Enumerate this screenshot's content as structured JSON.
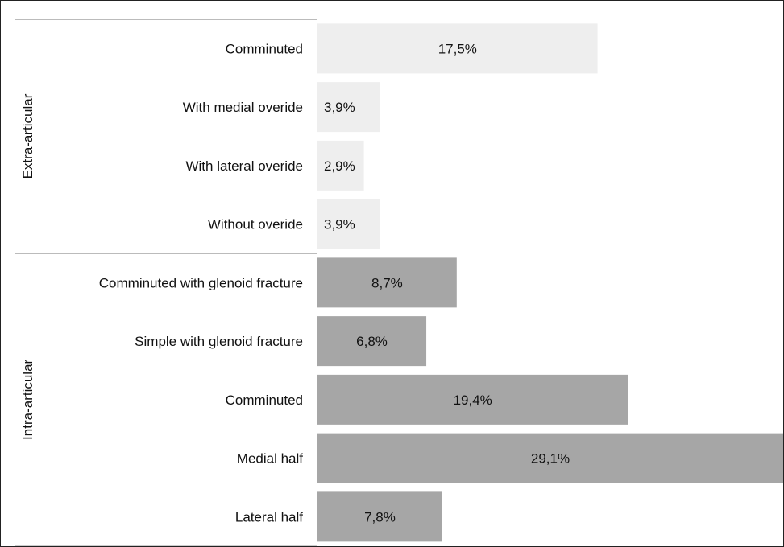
{
  "chart_data": {
    "type": "bar",
    "orientation": "horizontal",
    "groups": [
      {
        "name": "Extra-articular",
        "color": "#eeeeee",
        "items": [
          {
            "label": "Comminuted",
            "value": 17.5,
            "display": "17,5%"
          },
          {
            "label": "With medial overide",
            "value": 3.9,
            "display": "3,9%"
          },
          {
            "label": "With lateral overide",
            "value": 2.9,
            "display": "2,9%"
          },
          {
            "label": "Without overide",
            "value": 3.9,
            "display": "3,9%"
          }
        ]
      },
      {
        "name": "Intra-articular",
        "color": "#a6a6a6",
        "items": [
          {
            "label": "Comminuted with glenoid fracture",
            "value": 8.7,
            "display": "8,7%"
          },
          {
            "label": "Simple with glenoid fracture",
            "value": 6.8,
            "display": "6,8%"
          },
          {
            "label": "Comminuted",
            "value": 19.4,
            "display": "19,4%"
          },
          {
            "label": "Medial half",
            "value": 29.1,
            "display": "29,1%"
          },
          {
            "label": "Lateral half",
            "value": 7.8,
            "display": "7,8%"
          }
        ]
      }
    ],
    "xlim": [
      0,
      29.1
    ],
    "grid": false,
    "legend": "none"
  }
}
